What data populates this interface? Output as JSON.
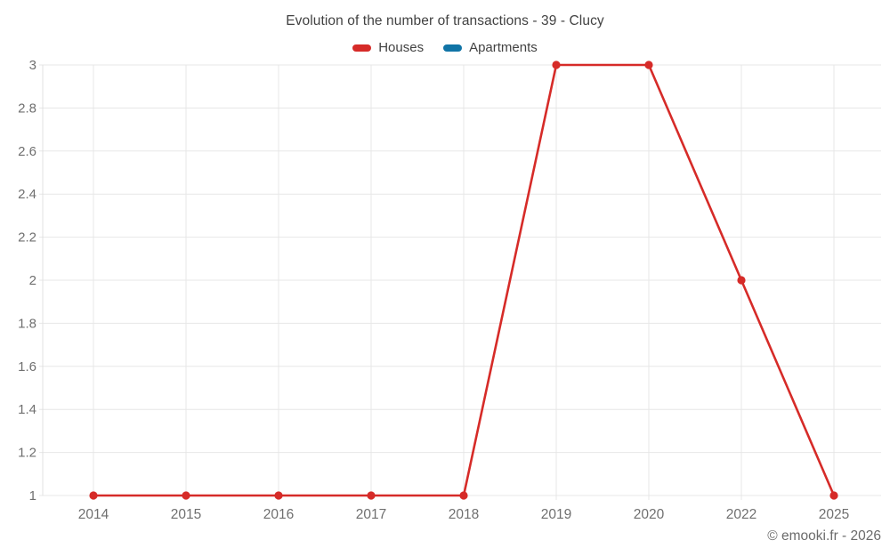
{
  "title": "Evolution of the number of transactions - 39 - Clucy",
  "copyright": "© emooki.fr - 2026",
  "chart_data": {
    "type": "line",
    "title": "Evolution of the number of transactions - 39 - Clucy",
    "xlabel": "",
    "ylabel": "",
    "categories": [
      "2014",
      "2015",
      "2016",
      "2017",
      "2018",
      "2019",
      "2020",
      "2022",
      "2025"
    ],
    "series": [
      {
        "name": "Houses",
        "color": "#d62b28",
        "marker": "circle",
        "values": [
          1,
          1,
          1,
          1,
          1,
          3,
          3,
          2,
          1
        ]
      },
      {
        "name": "Apartments",
        "color": "#1074a6",
        "marker": "circle",
        "values": []
      }
    ],
    "ylim": [
      1,
      3
    ],
    "yticks": [
      1,
      1.2,
      1.4,
      1.6,
      1.8,
      2,
      2.2,
      2.4,
      2.6,
      2.8,
      3
    ],
    "grid": true,
    "legend_position": "top"
  }
}
